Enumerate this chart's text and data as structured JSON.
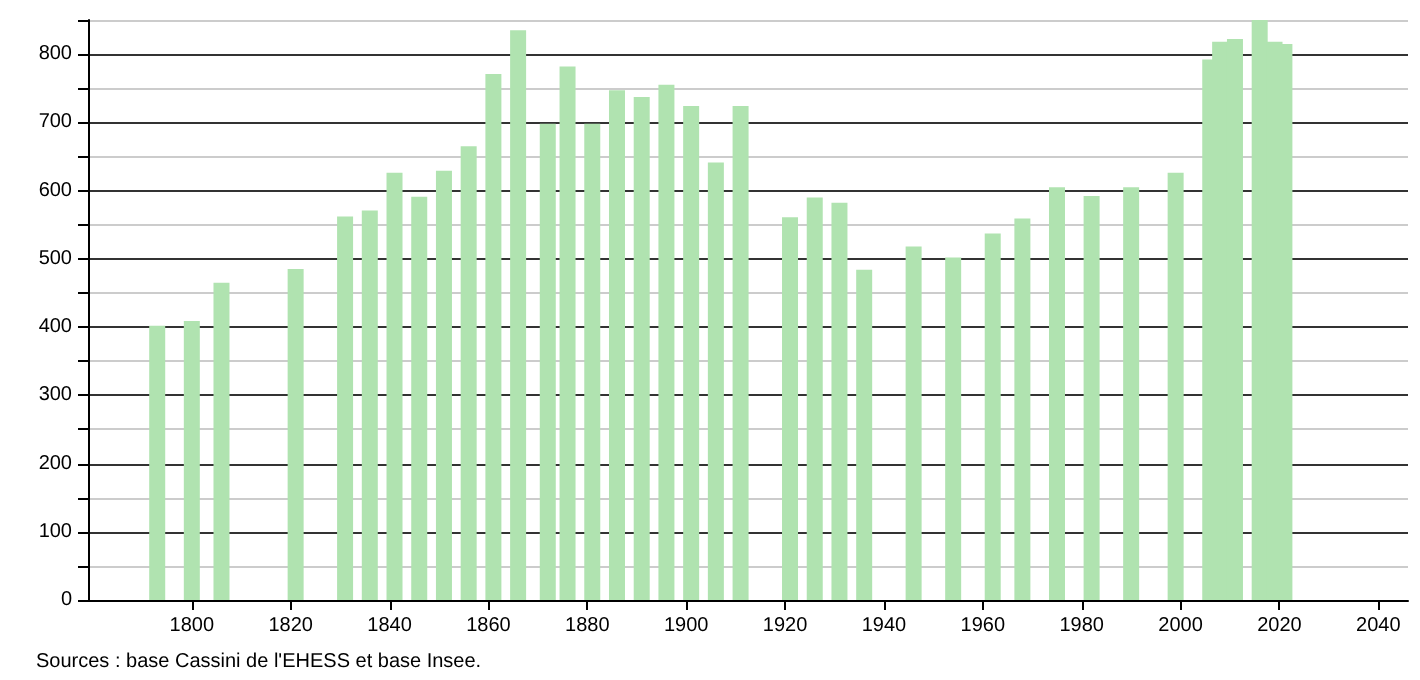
{
  "chart_data": {
    "type": "bar",
    "x": [
      1793,
      1800,
      1806,
      1821,
      1831,
      1836,
      1841,
      1846,
      1851,
      1856,
      1861,
      1866,
      1872,
      1876,
      1881,
      1886,
      1891,
      1896,
      1901,
      1906,
      1911,
      1921,
      1926,
      1931,
      1936,
      1946,
      1954,
      1962,
      1968,
      1975,
      1982,
      1990,
      1999,
      2006,
      2008,
      2011,
      2016,
      2019,
      2021
    ],
    "values": [
      402,
      409,
      465,
      485,
      562,
      571,
      626,
      591,
      629,
      665,
      771,
      835,
      698,
      782,
      698,
      747,
      737,
      755,
      724,
      641,
      724,
      561,
      590,
      582,
      484,
      518,
      502,
      537,
      559,
      605,
      592,
      605,
      626,
      792,
      818,
      822,
      850,
      818,
      815
    ],
    "color": "#b0e3b0",
    "xlim": [
      1779,
      2046
    ],
    "xticks": [
      1800,
      1820,
      1840,
      1860,
      1880,
      1900,
      1920,
      1940,
      1960,
      1980,
      2000,
      2020,
      2040
    ],
    "ylim": [
      0,
      850
    ],
    "yticks": [
      0,
      {
        "value": 50,
        "label": null
      },
      100,
      {
        "value": 150,
        "label": null
      },
      200,
      {
        "value": 250,
        "label": null
      },
      300,
      {
        "value": 350,
        "label": null
      },
      400,
      {
        "value": 450,
        "label": null
      },
      500,
      {
        "value": 550,
        "label": null
      },
      600,
      {
        "value": 650,
        "label": null
      },
      700,
      {
        "value": 750,
        "label": null
      },
      800,
      {
        "value": 850,
        "label": null
      }
    ],
    "grid": "y",
    "annotations": [
      "Sources : base Cassini de l'EHESS et base Insee."
    ]
  }
}
